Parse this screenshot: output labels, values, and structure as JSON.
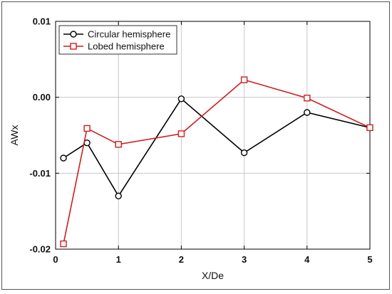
{
  "chart_data": {
    "type": "line",
    "title": "",
    "xlabel": "X/De",
    "ylabel": "AWx",
    "xlim": [
      0,
      5
    ],
    "ylim": [
      -0.02,
      0.01
    ],
    "x_ticks": [
      0,
      1,
      2,
      3,
      4,
      5
    ],
    "x_tick_labels": [
      "0",
      "1",
      "2",
      "3",
      "4",
      "5"
    ],
    "y_ticks": [
      -0.02,
      -0.01,
      0.0,
      0.01
    ],
    "y_tick_labels": [
      "-0.02",
      "-0.01",
      "0.00",
      "0.01"
    ],
    "grid": true,
    "legend_position": "top-left",
    "series": [
      {
        "name": "Circular hemisphere",
        "color": "#000000",
        "marker": "circle",
        "x": [
          0.125,
          0.5,
          1,
          2,
          3,
          4,
          5
        ],
        "y": [
          -0.008,
          -0.006,
          -0.013,
          -0.0002,
          -0.0073,
          -0.002,
          -0.004
        ]
      },
      {
        "name": "Lobed hemisphere",
        "color": "#cc1f1f",
        "marker": "square",
        "x": [
          0.125,
          0.5,
          1,
          2,
          3,
          4,
          5
        ],
        "y": [
          -0.0193,
          -0.0041,
          -0.0062,
          -0.0048,
          0.0023,
          -0.0001,
          -0.004
        ]
      }
    ]
  }
}
